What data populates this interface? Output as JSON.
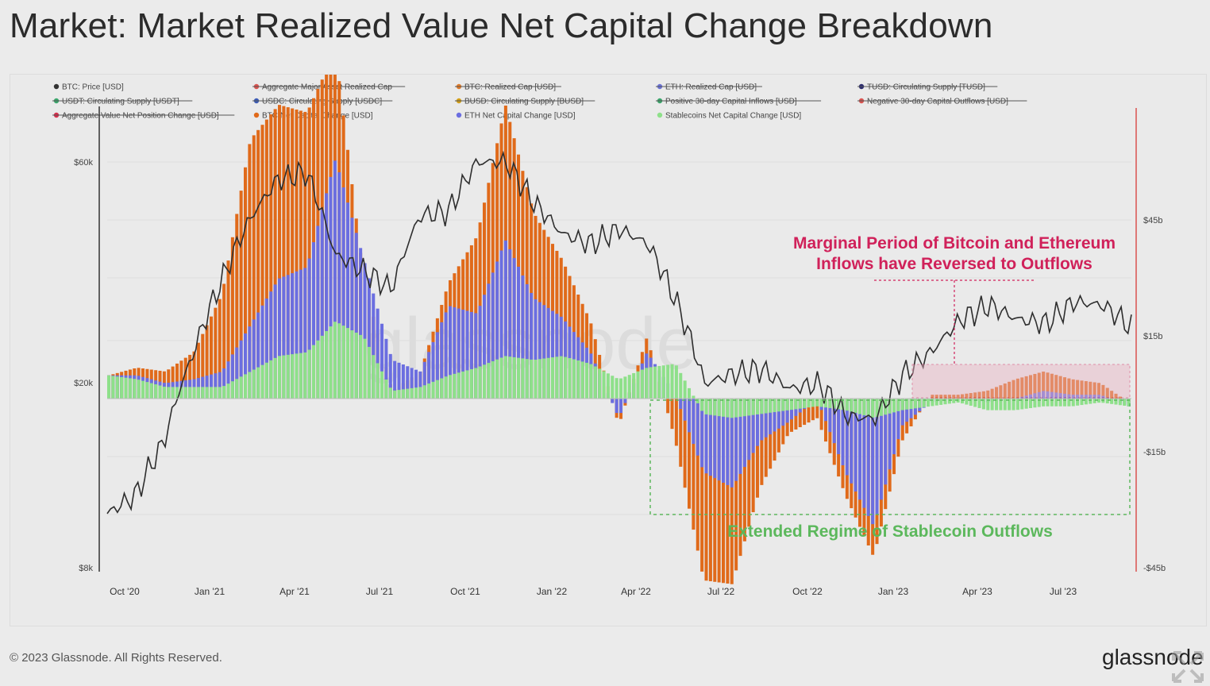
{
  "title": "Market: Market Realized Value Net Capital Change Breakdown",
  "footer": "© 2023 Glassnode. All Rights Reserved.",
  "brand": "glassnode",
  "watermark": "glassnode",
  "legend": [
    {
      "label": "BTC: Price [USD]",
      "color": "#333333",
      "struck": false
    },
    {
      "label": "Aggregate Major Asset Realized Cap",
      "color": "#d9534f",
      "struck": true
    },
    {
      "label": "BTC: Realized Cap [USD]",
      "color": "#e07b2a",
      "struck": true
    },
    {
      "label": "ETH: Realized Cap [USD]",
      "color": "#6b73d6",
      "struck": true
    },
    {
      "label": "TUSD: Circulating Supply [TUSD]",
      "color": "#2a2a6e",
      "struck": true
    },
    {
      "label": "USDT: Circulating Supply [USDT]",
      "color": "#3aa66b",
      "struck": true
    },
    {
      "label": "USDC: Circulating Supply [USDC]",
      "color": "#3b5bb5",
      "struck": true
    },
    {
      "label": "BUSD: Circulating Supply [BUSD]",
      "color": "#d4a017",
      "struck": true
    },
    {
      "label": "Positive 30-day Capital Inflows [USD]",
      "color": "#3aa66b",
      "struck": true
    },
    {
      "label": "Negative 30-day Capital Outflows [USD]",
      "color": "#d9534f",
      "struck": true
    },
    {
      "label": "Aggregate Value Net Position Change [USD]",
      "color": "#d62e4c",
      "struck": true
    },
    {
      "label": "BTC Net Capital Change [USD]",
      "color": "#e06a1a",
      "struck": false
    },
    {
      "label": "ETH Net Capital Change [USD]",
      "color": "#6b6ee0",
      "struck": false
    },
    {
      "label": "Stablecoins Net Capital Change [USD]",
      "color": "#8ee08a",
      "struck": false
    }
  ],
  "annotations": {
    "reversal": [
      "Marginal Period of Bitcoin and Ethereum",
      "Inflows have Reversed to Outflows"
    ],
    "reversal_color": "#d0215a",
    "stablecoin": "Extended Regime of Stablecoin Outflows",
    "stablecoin_color": "#5cb85c"
  },
  "colors": {
    "btc": "#e06a1a",
    "eth": "#6b6ee0",
    "stable": "#8ee08a",
    "price": "#2e2e2e",
    "axis_right": "#d9534f"
  },
  "chart_data": {
    "type": "area",
    "title": "Market: Market Realized Value Net Capital Change Breakdown",
    "x_ticks": [
      "Oct '20",
      "Jan '21",
      "Apr '21",
      "Jul '21",
      "Oct '21",
      "Jan '22",
      "Apr '22",
      "Jul '22",
      "Oct '22",
      "Jan '23",
      "Apr '23",
      "Jul '23"
    ],
    "y_left_ticks": [
      "$60k",
      "$20k",
      "$8k"
    ],
    "y_left_scale": "log",
    "y_left_range": [
      8000,
      80000
    ],
    "y_right_ticks": [
      "$45b",
      "$15b",
      "-$15b",
      "-$45b"
    ],
    "y_right_range": [
      -45,
      60
    ],
    "y_right_unit": "billion USD",
    "x": [
      "2020-09",
      "2020-10",
      "2020-11",
      "2020-12",
      "2021-01",
      "2021-02",
      "2021-03",
      "2021-04",
      "2021-05",
      "2021-06",
      "2021-07",
      "2021-08",
      "2021-09",
      "2021-10",
      "2021-11",
      "2021-12",
      "2022-01",
      "2022-02",
      "2022-03",
      "2022-04",
      "2022-05",
      "2022-06",
      "2022-07",
      "2022-08",
      "2022-09",
      "2022-10",
      "2022-11",
      "2022-12",
      "2023-01",
      "2023-02",
      "2023-03",
      "2023-04",
      "2023-05",
      "2023-06",
      "2023-07",
      "2023-08",
      "2023-09"
    ],
    "series": [
      {
        "name": "BTC: Price [USD]",
        "axis": "left",
        "values": [
          10500,
          11500,
          15000,
          23000,
          33000,
          45000,
          55000,
          57000,
          38000,
          35000,
          32000,
          46000,
          47000,
          60000,
          60000,
          49000,
          42000,
          40000,
          43000,
          40000,
          30000,
          20000,
          21000,
          21500,
          19500,
          20000,
          17000,
          16800,
          21000,
          23500,
          27500,
          29500,
          27500,
          27000,
          30000,
          29500,
          26500
        ]
      },
      {
        "name": "BTC Net Capital Change [USD]",
        "axis": "right",
        "values": [
          0,
          2,
          3,
          7,
          20,
          48,
          45,
          40,
          28,
          -5,
          -8,
          0,
          6,
          20,
          35,
          22,
          15,
          8,
          -2,
          4,
          -12,
          -28,
          -25,
          -12,
          -3,
          -5,
          -6,
          -8,
          -4,
          2,
          1,
          3,
          5,
          5,
          4,
          3,
          1
        ]
      },
      {
        "name": "ETH Net Capital Change [USD]",
        "axis": "right",
        "values": [
          0,
          1,
          1,
          2,
          4,
          12,
          20,
          22,
          42,
          20,
          8,
          4,
          18,
          14,
          30,
          16,
          10,
          3,
          -10,
          4,
          -8,
          -15,
          -18,
          -7,
          -3,
          2,
          -16,
          -28,
          -4,
          1,
          1,
          2,
          3,
          4,
          3,
          2,
          0
        ]
      },
      {
        "name": "Stablecoins Net Capital Change [USD]",
        "axis": "right",
        "values": [
          6,
          5,
          3,
          3,
          3,
          7,
          11,
          12,
          20,
          16,
          2,
          3,
          6,
          8,
          11,
          10,
          11,
          9,
          5,
          8,
          9,
          -4,
          -5,
          -4,
          -3,
          -2,
          -3,
          -5,
          -3,
          -2,
          -1,
          -3,
          -3,
          -2,
          -2,
          -1,
          -2
        ]
      }
    ]
  }
}
